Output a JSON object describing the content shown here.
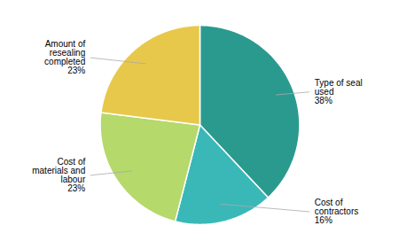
{
  "chart_data": {
    "type": "pie",
    "categories": [
      "Type of seal\nused\n38%",
      "Cost of\ncontractors\n16%",
      "Cost of\nmaterials and\nlabour\n23%",
      "Amount of\nresealing\ncompleted\n23%"
    ],
    "values": [
      38,
      16,
      23,
      23
    ],
    "colors": [
      "#2b9a8e",
      "#3ab8b8",
      "#b5d96b",
      "#e8c84a"
    ]
  }
}
